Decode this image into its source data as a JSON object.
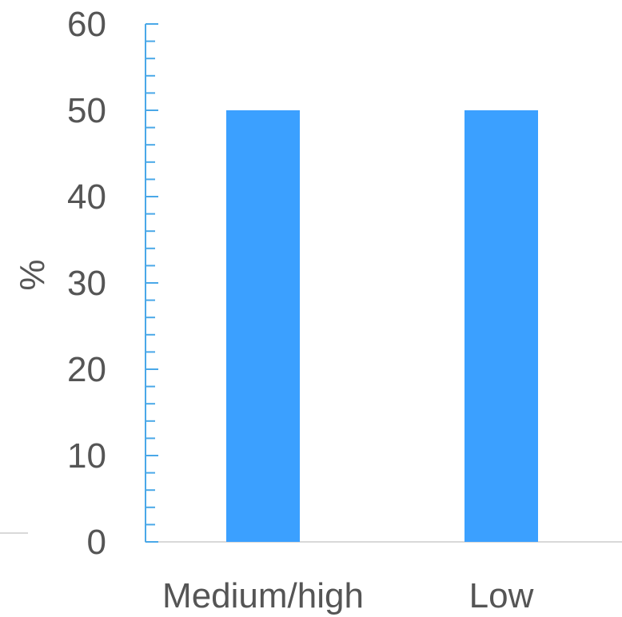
{
  "chart_data": {
    "type": "bar",
    "categories": [
      "Medium/high",
      "Low"
    ],
    "values": [
      50,
      50
    ],
    "ylabel": "%",
    "ylim": [
      0,
      60
    ],
    "yticks": [
      0,
      10,
      20,
      30,
      40,
      50,
      60
    ],
    "minor_tick_step": 2,
    "grid": false,
    "bar_color": "#3ba0ff",
    "axis_color": "#4aa8e8",
    "baseline_color": "#d9d9d9",
    "text_color": "#555555"
  }
}
